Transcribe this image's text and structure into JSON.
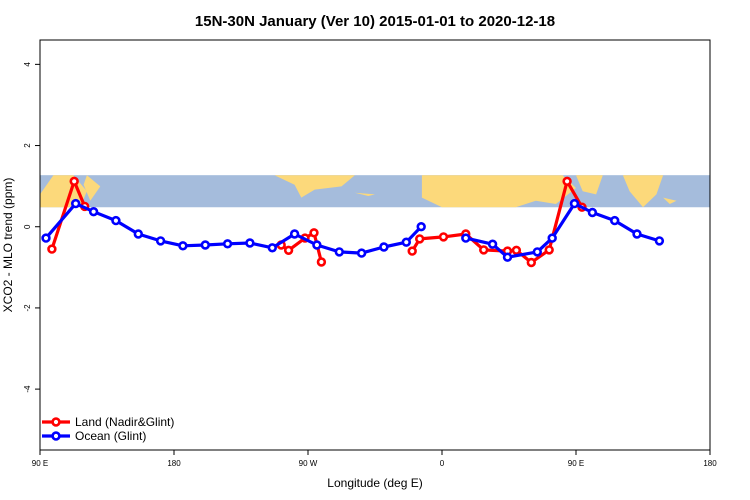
{
  "chart_data": {
    "type": "line",
    "title": "15N-30N January (Ver 10)   2015-01-01 to 2020-12-18",
    "xlabel": "Longitude (deg E)",
    "ylabel": "XCO2 - MLO trend (ppm)",
    "xlim": [
      90,
      540
    ],
    "ylim": [
      -5.5,
      4.6
    ],
    "x_ticks": [
      {
        "value": 90,
        "label": "90 E"
      },
      {
        "value": 180,
        "label": "180"
      },
      {
        "value": 270,
        "label": "90 W"
      },
      {
        "value": 360,
        "label": "0"
      },
      {
        "value": 450,
        "label": "90 E"
      },
      {
        "value": 540,
        "label": "180"
      }
    ],
    "y_ticks": [
      {
        "value": -4,
        "label": "-4"
      },
      {
        "value": -2,
        "label": "-2"
      },
      {
        "value": 0,
        "label": "0"
      },
      {
        "value": 2,
        "label": "2"
      },
      {
        "value": 4,
        "label": "4"
      }
    ],
    "map_band": {
      "y_min": 0.48,
      "y_max": 1.27,
      "x_min": 90,
      "x_max": 540,
      "ocean_color": "#a5bcdc",
      "land_color": "#fcd97b"
    },
    "series": [
      {
        "name": "Land (Nadir&Glint)",
        "color": "#ff0000",
        "segments": [
          [
            [
              98,
              -0.55
            ],
            [
              113,
              1.12
            ],
            [
              120,
              0.5
            ]
          ],
          [
            [
              252,
              -0.45
            ],
            [
              257,
              -0.58
            ],
            [
              268,
              -0.28
            ],
            [
              274,
              -0.15
            ],
            [
              279,
              -0.87
            ]
          ],
          [
            [
              340,
              -0.6
            ],
            [
              345,
              -0.3
            ],
            [
              361,
              -0.25
            ],
            [
              376,
              -0.18
            ],
            [
              388,
              -0.57
            ],
            [
              404,
              -0.6
            ],
            [
              410,
              -0.58
            ],
            [
              420,
              -0.88
            ],
            [
              432,
              -0.57
            ],
            [
              444,
              1.12
            ],
            [
              454,
              0.48
            ]
          ]
        ]
      },
      {
        "name": "Ocean (Glint)",
        "color": "#0000ff",
        "segments": [
          [
            [
              94,
              -0.28
            ],
            [
              114,
              0.57
            ],
            [
              126,
              0.37
            ],
            [
              141,
              0.15
            ],
            [
              156,
              -0.18
            ],
            [
              171,
              -0.35
            ],
            [
              186,
              -0.47
            ],
            [
              201,
              -0.45
            ],
            [
              216,
              -0.42
            ],
            [
              231,
              -0.4
            ],
            [
              246,
              -0.52
            ],
            [
              261,
              -0.18
            ],
            [
              276,
              -0.45
            ],
            [
              291,
              -0.62
            ],
            [
              306,
              -0.65
            ],
            [
              321,
              -0.5
            ],
            [
              336,
              -0.38
            ],
            [
              346,
              0.0
            ]
          ],
          [
            [
              376,
              -0.28
            ],
            [
              394,
              -0.43
            ],
            [
              404,
              -0.75
            ],
            [
              424,
              -0.62
            ],
            [
              434,
              -0.28
            ],
            [
              449,
              0.57
            ],
            [
              461,
              0.35
            ],
            [
              476,
              0.15
            ],
            [
              491,
              -0.18
            ],
            [
              506,
              -0.35
            ]
          ]
        ]
      }
    ],
    "legend": {
      "position": "bottom-left",
      "entries": [
        {
          "name": "Land (Nadir&Glint)",
          "color": "#ff0000"
        },
        {
          "name": "Ocean (Glint)",
          "color": "#0000ff"
        }
      ]
    }
  }
}
